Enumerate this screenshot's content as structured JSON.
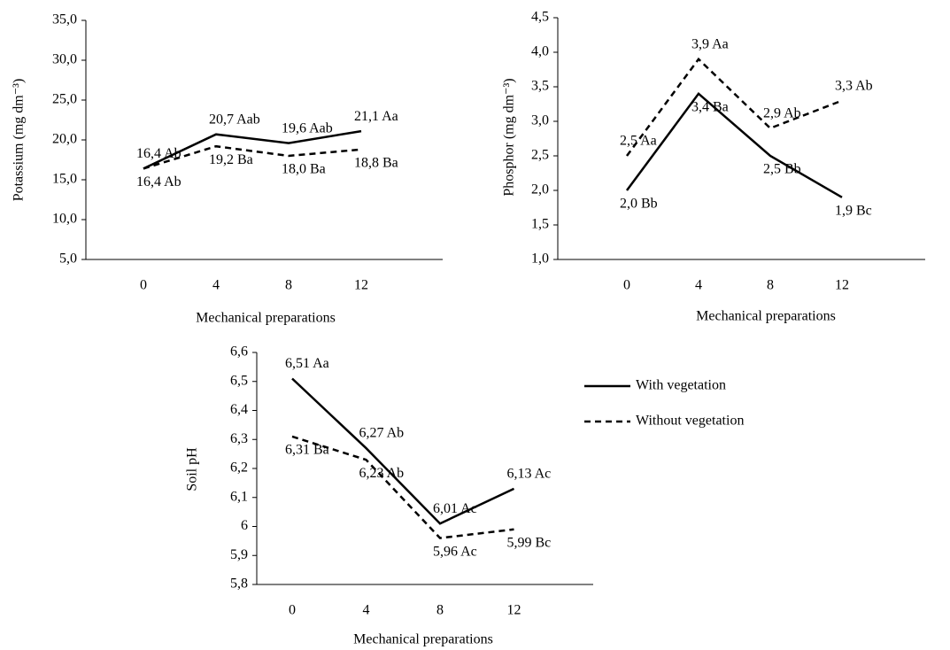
{
  "chart_data": [
    {
      "type": "line",
      "y_label": "Potassium (mg dm⁻³)",
      "x_label": "Mechanical preparations",
      "categories": [
        "0",
        "4",
        "8",
        "12"
      ],
      "ylim": [
        5,
        35
      ],
      "yticks": [
        {
          "value": 5,
          "label": "5,0"
        },
        {
          "value": 10,
          "label": "10,0"
        },
        {
          "value": 15,
          "label": "15,0"
        },
        {
          "value": 20,
          "label": "20,0"
        },
        {
          "value": 25,
          "label": "25,0"
        },
        {
          "value": 30,
          "label": "30,0"
        },
        {
          "value": 35,
          "label": "35,0"
        }
      ],
      "series": [
        {
          "color": "#000000",
          "dash": "solid",
          "values": [
            16.4,
            20.7,
            19.6,
            21.1
          ],
          "value_labels": [
            "16,4 Ab",
            "20,7 Aab",
            "19,6 Aab",
            "21,1 Aa"
          ]
        },
        {
          "color": "#000000",
          "dash": "dashed",
          "values": [
            16.4,
            19.2,
            18.0,
            18.8
          ],
          "value_labels": [
            "16,4 Ab",
            "19,2 Ba",
            "18,0 Ba",
            "18,8 Ba"
          ]
        }
      ]
    },
    {
      "type": "line",
      "y_label": "Phosphor (mg dm⁻³)",
      "x_label": "Mechanical preparations",
      "categories": [
        "0",
        "4",
        "8",
        "12"
      ],
      "ylim": [
        1,
        4.5
      ],
      "yticks": [
        {
          "value": 1,
          "label": "1,0"
        },
        {
          "value": 1.5,
          "label": "1,5"
        },
        {
          "value": 2,
          "label": "2,0"
        },
        {
          "value": 2.5,
          "label": "2,5"
        },
        {
          "value": 3,
          "label": "3,0"
        },
        {
          "value": 3.5,
          "label": "3,5"
        },
        {
          "value": 4,
          "label": "4,0"
        },
        {
          "value": 4.5,
          "label": "4,5"
        }
      ],
      "series": [
        {
          "color": "#000000",
          "dash": "solid",
          "values": [
            2.0,
            3.4,
            2.5,
            1.9
          ],
          "value_labels": [
            "2,0 Bb",
            "3,4 Ba",
            "2,5 Bb",
            "1,9 Bc"
          ]
        },
        {
          "color": "#000000",
          "dash": "dashed",
          "values": [
            2.5,
            3.9,
            2.9,
            3.3
          ],
          "value_labels": [
            "2,5 Aa",
            "3,9 Aa",
            "2,9 Ab",
            "3,3 Ab"
          ]
        }
      ]
    },
    {
      "type": "line",
      "y_label": "Soil pH",
      "x_label": "Mechanical preparations",
      "categories": [
        "0",
        "4",
        "8",
        "12"
      ],
      "ylim": [
        5.8,
        6.6
      ],
      "yticks": [
        {
          "value": 5.8,
          "label": "5,8"
        },
        {
          "value": 5.9,
          "label": "5,9"
        },
        6,
        {
          "value": 6.1,
          "label": "6,1"
        },
        {
          "value": 6.2,
          "label": "6,2"
        },
        {
          "value": 6.3,
          "label": "6,3"
        },
        {
          "value": 6.4,
          "label": "6,4"
        },
        {
          "value": 6.5,
          "label": "6,5"
        },
        {
          "value": 6.6,
          "label": "6,6"
        }
      ],
      "legend": "right",
      "series": [
        {
          "name": "With vegetation",
          "color": "#000000",
          "dash": "solid",
          "values": [
            6.51,
            6.27,
            6.01,
            6.13
          ],
          "value_labels": [
            "6,51 Aa",
            "6,27 Ab",
            "6,01 Ac",
            "6,13 Ac"
          ]
        },
        {
          "name": "Without vegetation",
          "color": "#000000",
          "dash": "dashed",
          "values": [
            6.31,
            6.23,
            5.96,
            5.99
          ],
          "value_labels": [
            "6,31 Ba",
            "6,23 Ab",
            "5,96 Ac",
            "5,99 Bc"
          ]
        }
      ]
    }
  ]
}
